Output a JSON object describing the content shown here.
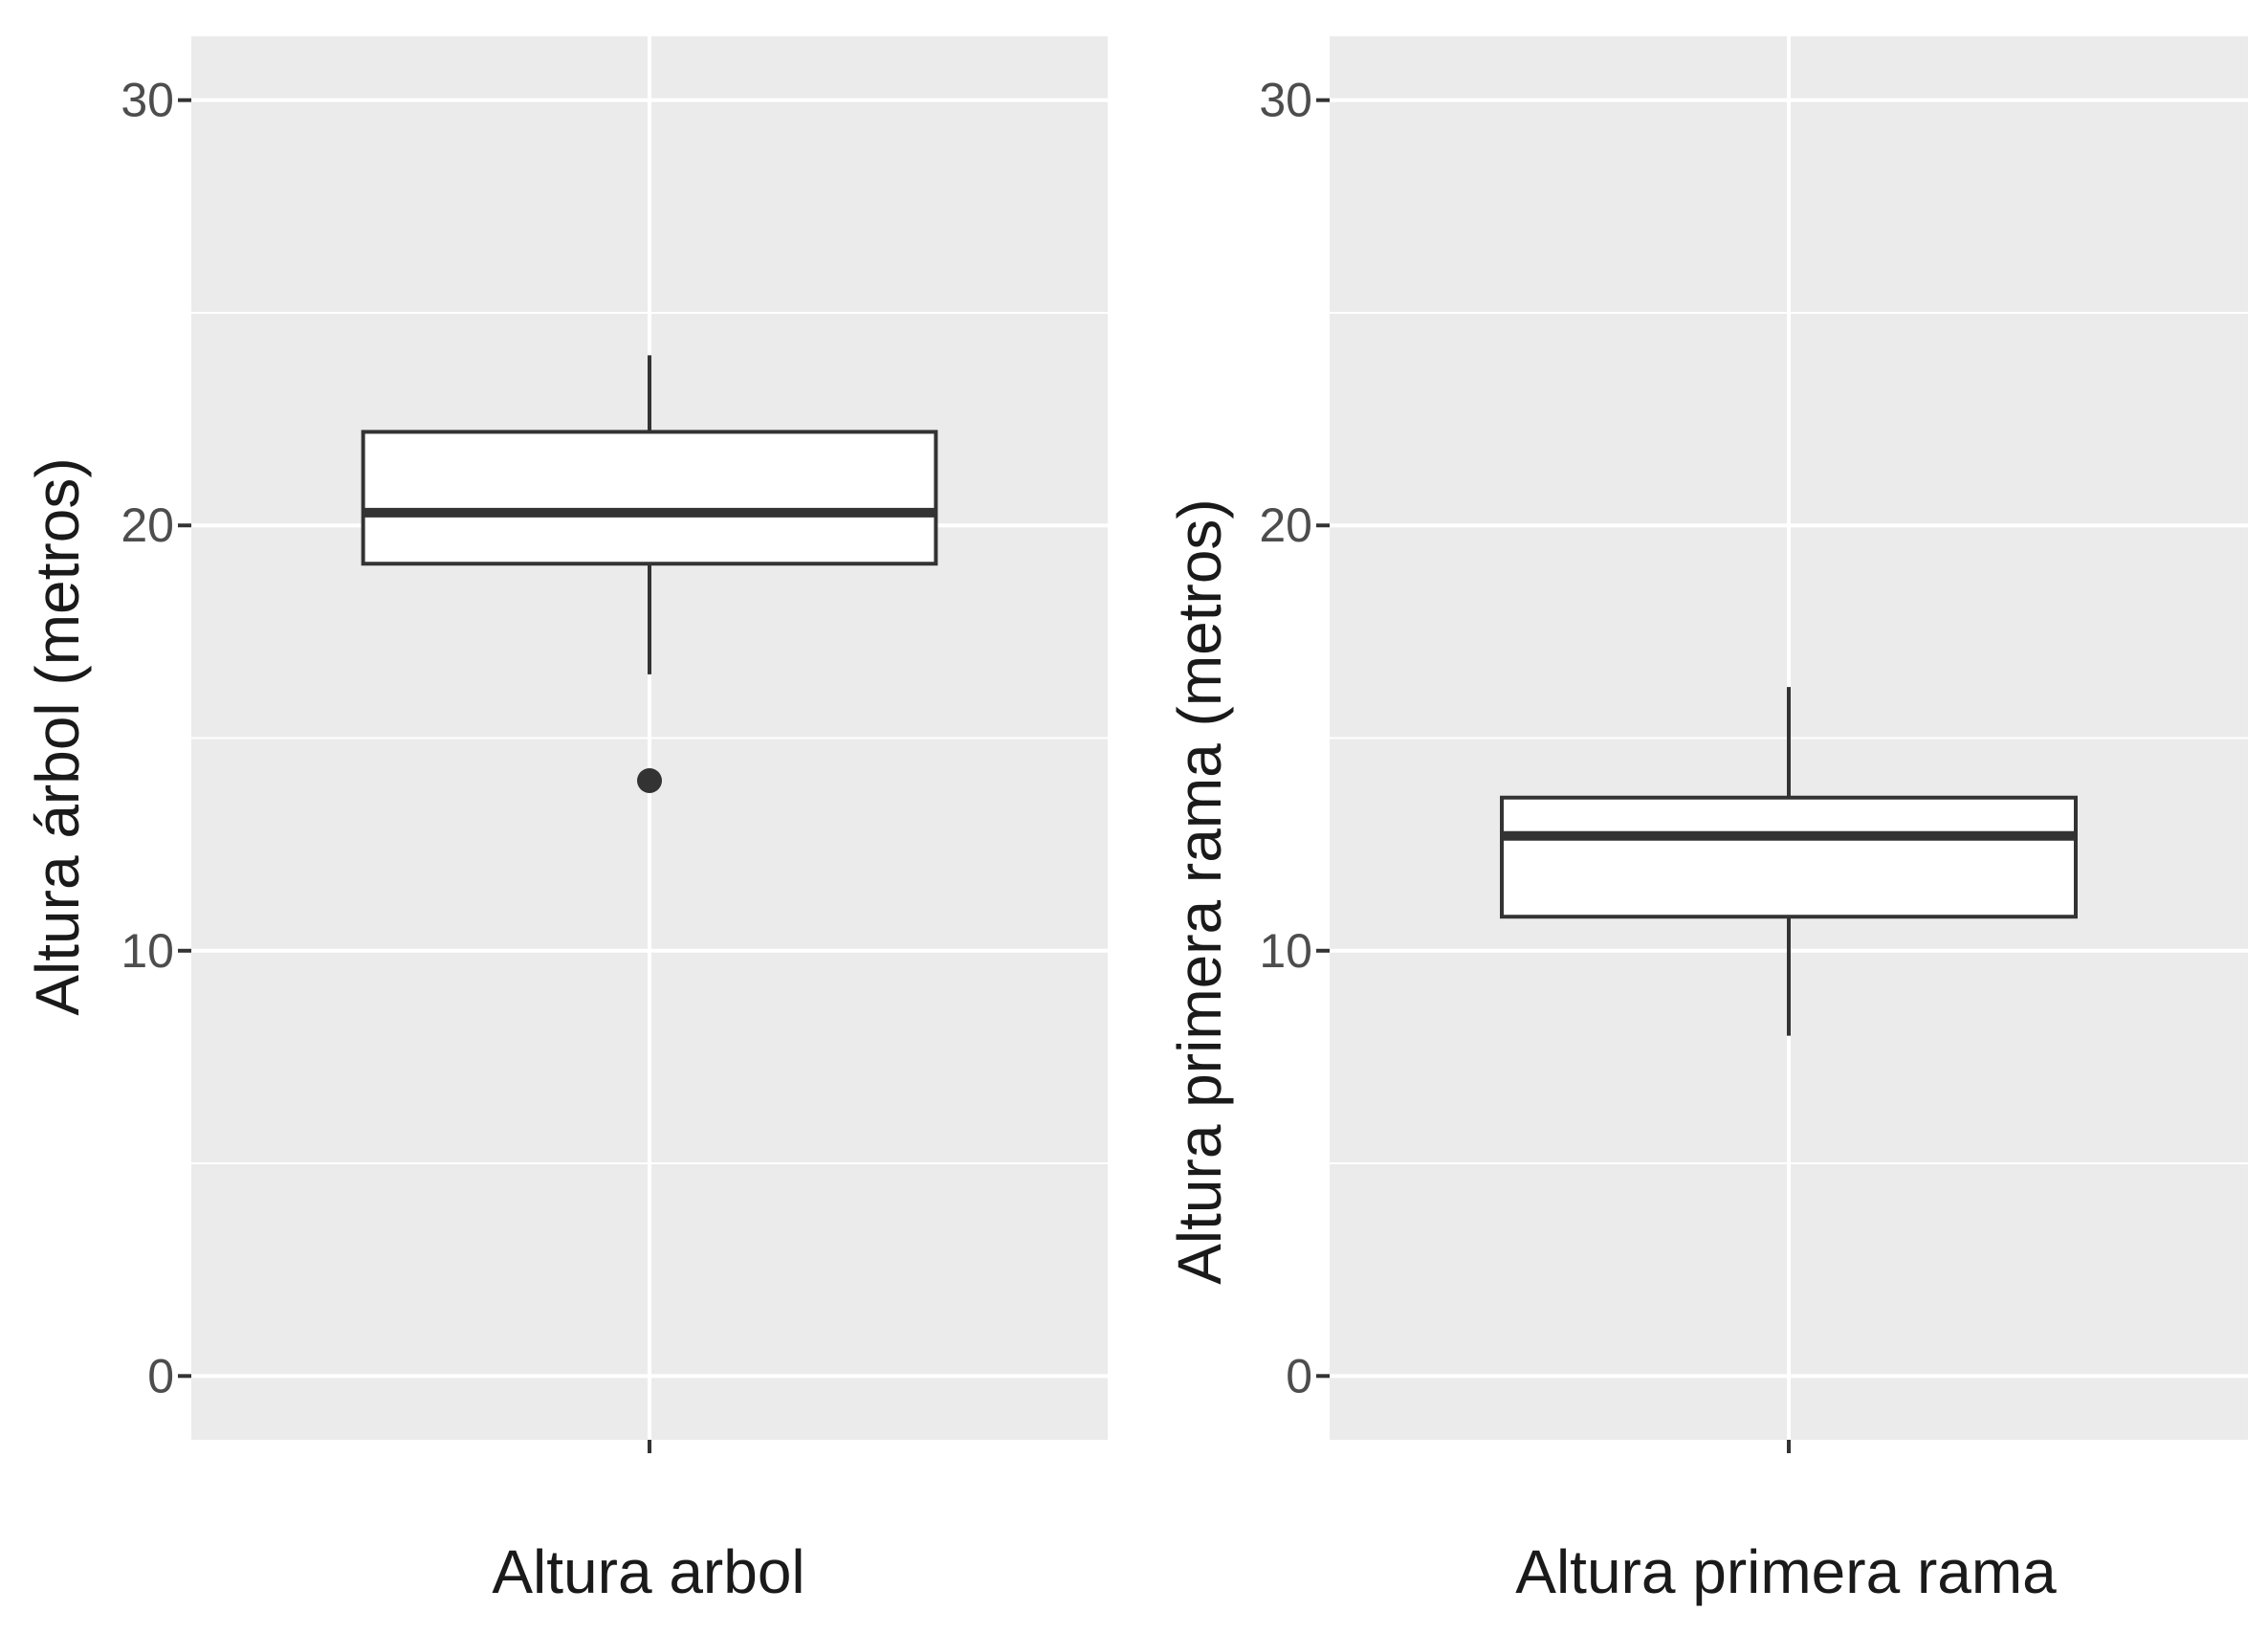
{
  "chart_data": [
    {
      "type": "box",
      "category": "Altura arbol",
      "xlabel": "Altura arbol",
      "ylabel": "Altura árbol (metros)",
      "ylim": [
        -1.5,
        31.5
      ],
      "yticks": [
        0,
        10,
        20,
        30
      ],
      "grid": true,
      "stats": {
        "whisker_low": 16.5,
        "q1": 19.1,
        "median": 20.3,
        "q3": 22.2,
        "whisker_high": 24.0
      },
      "outliers": [
        14.0
      ]
    },
    {
      "type": "box",
      "category": "Altura primera rama",
      "xlabel": "Altura primera rama",
      "ylabel": "Altura primera rama (metros)",
      "ylim": [
        -1.5,
        31.5
      ],
      "yticks": [
        0,
        10,
        20,
        30
      ],
      "grid": true,
      "stats": {
        "whisker_low": 8.0,
        "q1": 10.8,
        "median": 12.7,
        "q3": 13.6,
        "whisker_high": 16.2
      },
      "outliers": []
    }
  ],
  "colors": {
    "panel_bg": "#ebebeb",
    "grid": "#ffffff",
    "box_fill": "#ffffff",
    "box_line": "#333333",
    "tick": "#333333"
  }
}
